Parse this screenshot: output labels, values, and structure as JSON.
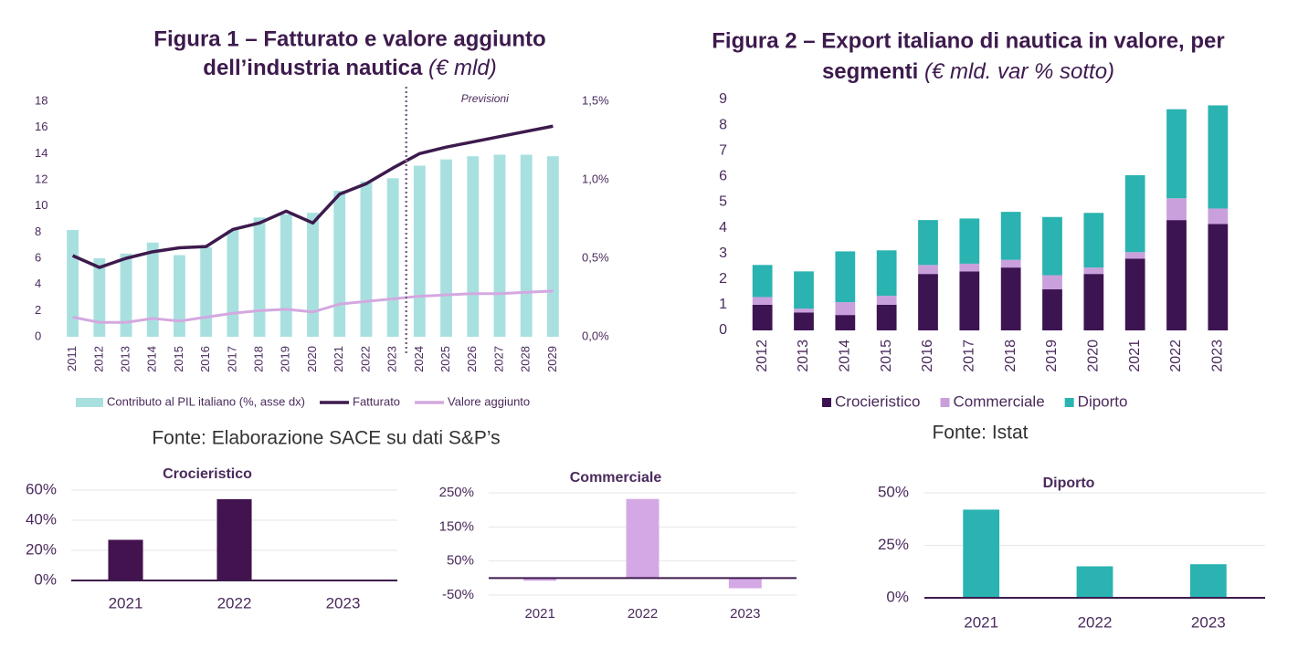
{
  "chart_data": [
    {
      "type": "combo",
      "title": [
        "Figura 1 – Fatturato e valore aggiunto",
        "dell’industria nautica"
      ],
      "title_note": "(€ mld)",
      "source": "Fonte: Elaborazione SACE su dati S&P’s",
      "categories": [
        "2011",
        "2012",
        "2013",
        "2014",
        "2015",
        "2016",
        "2017",
        "2018",
        "2019",
        "2020",
        "2021",
        "2022",
        "2023",
        "2024",
        "2025",
        "2026",
        "2027",
        "2028",
        "2029"
      ],
      "ylim": [
        0,
        18
      ],
      "yticks": [
        0,
        2,
        4,
        6,
        8,
        10,
        12,
        14,
        16,
        18
      ],
      "y2lim": [
        0,
        1.5
      ],
      "y2ticks": [
        {
          "value": 0,
          "label": "0,0%"
        },
        {
          "value": 0.5,
          "label": "0,5%"
        },
        {
          "value": 1,
          "label": "1,0%"
        },
        {
          "value": 1.5,
          "label": "1,5%"
        }
      ],
      "annotation": {
        "text": "Previsioni",
        "from": "2024"
      },
      "series": [
        {
          "name": "Contributo al PIL italiano (%, asse dx)",
          "type": "bar",
          "axis": "y2",
          "color": "#a8e0e0",
          "values": [
            0.68,
            0.5,
            0.53,
            0.6,
            0.52,
            0.57,
            0.68,
            0.76,
            0.78,
            0.79,
            0.93,
            0.99,
            1.01,
            1.09,
            1.13,
            1.15,
            1.16,
            1.16,
            1.15
          ]
        },
        {
          "name": "Fatturato",
          "type": "line",
          "color": "#3d1a4d",
          "values": [
            6.2,
            5.3,
            6.0,
            6.5,
            6.8,
            6.9,
            8.2,
            8.7,
            9.6,
            8.7,
            10.9,
            11.7,
            12.9,
            14.0,
            14.5,
            14.9,
            15.3,
            15.7,
            16.1
          ]
        },
        {
          "name": "Valore aggiunto",
          "type": "line",
          "color": "#d4a8e0",
          "values": [
            1.5,
            1.1,
            1.1,
            1.4,
            1.2,
            1.5,
            1.8,
            2.0,
            2.1,
            1.9,
            2.5,
            2.7,
            2.9,
            3.1,
            3.2,
            3.3,
            3.3,
            3.4,
            3.5
          ]
        }
      ]
    },
    {
      "type": "stacked_bar",
      "title": [
        "Figura 2 – Export italiano di nautica in valore, per",
        "segmenti"
      ],
      "title_note": "(€ mld. var % sotto)",
      "source": "Fonte: Istat",
      "categories": [
        "2012",
        "2013",
        "2014",
        "2015",
        "2016",
        "2017",
        "2018",
        "2019",
        "2020",
        "2021",
        "2022",
        "2023"
      ],
      "ylim": [
        0,
        9
      ],
      "yticks": [
        0,
        1,
        2,
        3,
        4,
        5,
        6,
        7,
        8,
        9
      ],
      "series": [
        {
          "name": "Crocieristico",
          "color": "#3d1452",
          "values": [
            1.0,
            0.7,
            0.6,
            1.0,
            2.2,
            2.3,
            2.45,
            1.6,
            2.2,
            2.8,
            4.3,
            4.15
          ]
        },
        {
          "name": "Commerciale",
          "color": "#c9a0dc",
          "values": [
            0.3,
            0.15,
            0.5,
            0.35,
            0.35,
            0.3,
            0.3,
            0.55,
            0.25,
            0.25,
            0.85,
            0.6
          ]
        },
        {
          "name": "Diporto",
          "color": "#2ab3b0",
          "values": [
            1.25,
            1.45,
            1.98,
            1.77,
            1.75,
            1.76,
            1.87,
            2.27,
            2.13,
            3.0,
            3.47,
            4.02
          ]
        }
      ]
    },
    {
      "type": "bar",
      "title": "Crocieristico",
      "categories": [
        "2021",
        "2022",
        "2023"
      ],
      "values": [
        27,
        54,
        0
      ],
      "color": "#43134f",
      "ylim": [
        0,
        60
      ],
      "yticks": [
        {
          "value": 0,
          "label": "0%"
        },
        {
          "value": 20,
          "label": "20%"
        },
        {
          "value": 40,
          "label": "40%"
        },
        {
          "value": 60,
          "label": "60%"
        }
      ],
      "grid": true
    },
    {
      "type": "bar",
      "title": "Commerciale",
      "categories": [
        "2021",
        "2022",
        "2023"
      ],
      "values": [
        -8,
        232,
        -30
      ],
      "color": "#d4a8e4",
      "ylim": [
        -50,
        250
      ],
      "yticks": [
        {
          "value": -50,
          "label": "-50%"
        },
        {
          "value": 50,
          "label": "50%"
        },
        {
          "value": 150,
          "label": "150%"
        },
        {
          "value": 250,
          "label": "250%"
        }
      ],
      "grid": true
    },
    {
      "type": "bar",
      "title": "Diporto",
      "categories": [
        "2021",
        "2022",
        "2023"
      ],
      "values": [
        42,
        15,
        16
      ],
      "color": "#2ab3b0",
      "ylim": [
        0,
        50
      ],
      "yticks": [
        {
          "value": 0,
          "label": "0%"
        },
        {
          "value": 25,
          "label": "25%"
        },
        {
          "value": 50,
          "label": "50%"
        }
      ],
      "grid": true
    }
  ]
}
